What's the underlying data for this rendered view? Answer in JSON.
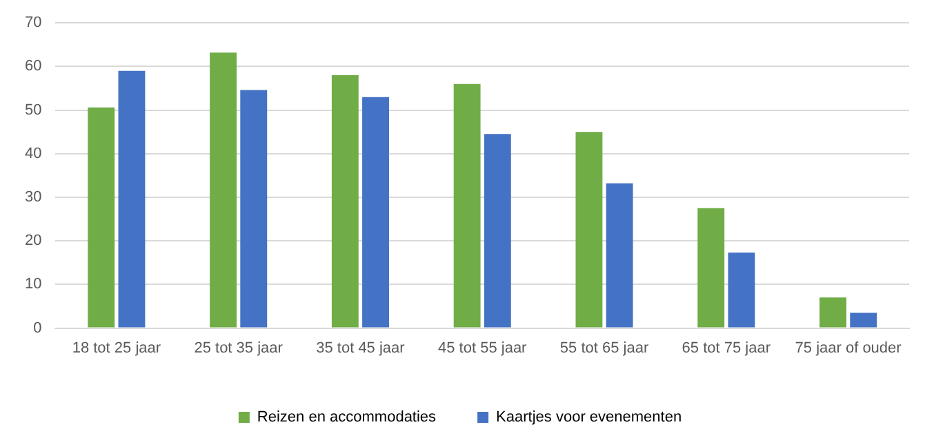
{
  "chart_data": {
    "type": "bar",
    "categories": [
      "18 tot 25 jaar",
      "25 tot 35 jaar",
      "35 tot 45 jaar",
      "45 tot 55 jaar",
      "55 tot 65 jaar",
      "65 tot 75 jaar",
      "75 jaar of ouder"
    ],
    "series": [
      {
        "name": "Reizen en accommodaties",
        "color": "#70ad47",
        "values": [
          50.6,
          63.2,
          58,
          56,
          45,
          27.5,
          7
        ]
      },
      {
        "name": "Kaartjes voor evenementen",
        "color": "#4472c4",
        "values": [
          59,
          54.6,
          53,
          44.5,
          33.2,
          17.3,
          3.5
        ]
      }
    ],
    "ylim": [
      0,
      70
    ],
    "yticks": [
      0,
      10,
      20,
      30,
      40,
      50,
      60,
      70
    ],
    "grid": "y",
    "legend": "bottom"
  }
}
